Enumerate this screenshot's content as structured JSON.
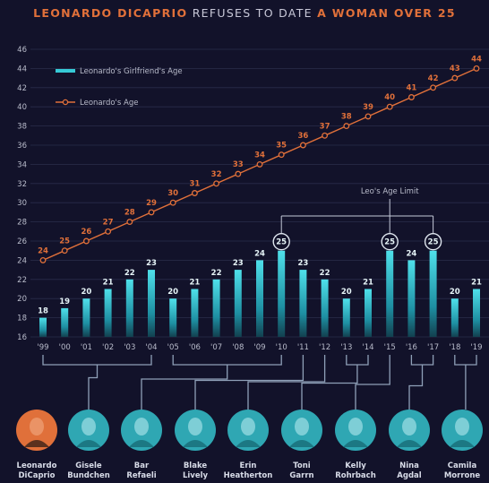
{
  "title": {
    "part1": "LEONARDO DICAPRIO",
    "part2": " REFUSES TO DATE ",
    "part3": "A WOMAN OVER 25"
  },
  "colors": {
    "background": "#12122a",
    "leo": "#e0703a",
    "girlfriend": "#36c9d6",
    "grid": "#2a2c4a",
    "bracket": "#8fa0b8"
  },
  "chart_data": {
    "type": "bar",
    "x": [
      "'99",
      "'00",
      "'01",
      "'02",
      "'03",
      "'04",
      "'05",
      "'06",
      "'07",
      "'08",
      "'09",
      "'10",
      "'11",
      "'12",
      "'13",
      "'14",
      "'15",
      "'16",
      "'17",
      "'18",
      "'19"
    ],
    "ylim": [
      16,
      46
    ],
    "yticks": [
      16,
      18,
      20,
      22,
      24,
      26,
      28,
      30,
      32,
      34,
      36,
      38,
      40,
      42,
      44,
      46
    ],
    "grid": true,
    "legend_position": "top-left",
    "series": [
      {
        "name": "Leonardo's Girlfriend's Age",
        "type": "bar",
        "values": [
          18,
          19,
          20,
          21,
          22,
          23,
          20,
          21,
          22,
          23,
          24,
          25,
          23,
          22,
          20,
          21,
          25,
          24,
          25,
          20,
          21
        ]
      },
      {
        "name": "Leonardo's Age",
        "type": "line",
        "values": [
          24,
          25,
          26,
          27,
          28,
          29,
          30,
          31,
          32,
          33,
          34,
          35,
          36,
          37,
          38,
          39,
          40,
          41,
          42,
          43,
          44
        ]
      }
    ],
    "annotation": {
      "text": "Leo's Age Limit",
      "circled_years": [
        "'10",
        "'15",
        "'17"
      ],
      "circled_value": 25
    }
  },
  "people": [
    {
      "name": "Leonardo DiCaprio",
      "line1": "Leonardo",
      "line2": "DiCaprio",
      "highlight": true,
      "years": []
    },
    {
      "name": "Gisele Bundchen",
      "line1": "Gisele",
      "line2": "Bundchen",
      "highlight": false,
      "years": [
        "'99",
        "'04"
      ]
    },
    {
      "name": "Bar Refaeli",
      "line1": "Bar",
      "line2": "Refaeli",
      "highlight": false,
      "years": [
        "'05",
        "'10"
      ]
    },
    {
      "name": "Blake Lively",
      "line1": "Blake",
      "line2": "Lively",
      "highlight": false,
      "years": [
        "'11"
      ]
    },
    {
      "name": "Erin Heatherton",
      "line1": "Erin",
      "line2": "Heatherton",
      "highlight": false,
      "years": [
        "'12"
      ]
    },
    {
      "name": "Toni Garrn",
      "line1": "Toni",
      "line2": "Garrn",
      "highlight": false,
      "years": [
        "'13",
        "'14"
      ]
    },
    {
      "name": "Kelly Rohrbach",
      "line1": "Kelly",
      "line2": "Rohrbach",
      "highlight": false,
      "years": [
        "'15"
      ]
    },
    {
      "name": "Nina Agdal",
      "line1": "Nina",
      "line2": "Agdal",
      "highlight": false,
      "years": [
        "'16",
        "'17"
      ]
    },
    {
      "name": "Camila Morrone",
      "line1": "Camila",
      "line2": "Morrone",
      "highlight": false,
      "years": [
        "'18",
        "'19"
      ]
    }
  ]
}
